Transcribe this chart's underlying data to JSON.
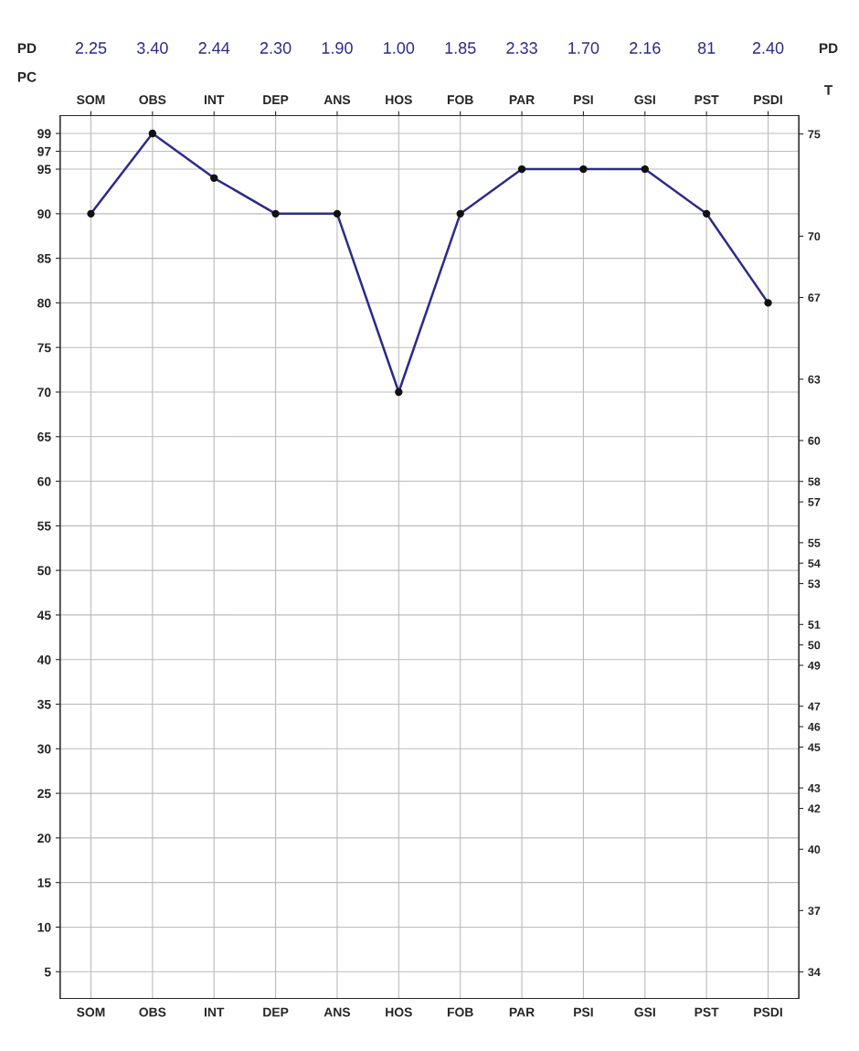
{
  "chart_data": {
    "type": "line",
    "categories": [
      "SOM",
      "OBS",
      "INT",
      "DEP",
      "ANS",
      "HOS",
      "FOB",
      "PAR",
      "PSI",
      "GSI",
      "PST",
      "PSDI"
    ],
    "series": [
      {
        "color": "#2b2b8c",
        "values": [
          90,
          99,
          94,
          90,
          90,
          70,
          90,
          95,
          95,
          95,
          90,
          80
        ]
      }
    ],
    "ylim": [
      2,
      101
    ],
    "yticks": [
      5,
      10,
      15,
      20,
      25,
      30,
      35,
      40,
      45,
      50,
      55,
      60,
      65,
      70,
      75,
      80,
      85,
      90,
      95,
      97,
      99
    ],
    "y2lim": [
      32.7,
      75.9
    ],
    "y2ticks": [
      34,
      37,
      40,
      42,
      43,
      45,
      46,
      47,
      49,
      50,
      51,
      53,
      54,
      55,
      57,
      58,
      60,
      63,
      67,
      70,
      75
    ],
    "ylabel": "PC",
    "y2label": "T",
    "annotations": [
      "PD",
      "2.25",
      "3.40",
      "2.44",
      "2.30",
      "1.90",
      "1.00",
      "1.85",
      "2.33",
      "1.70",
      "2.16",
      "81",
      "2.40",
      "PD"
    ],
    "grid": true,
    "marker": "circle",
    "line_style": "solid"
  }
}
